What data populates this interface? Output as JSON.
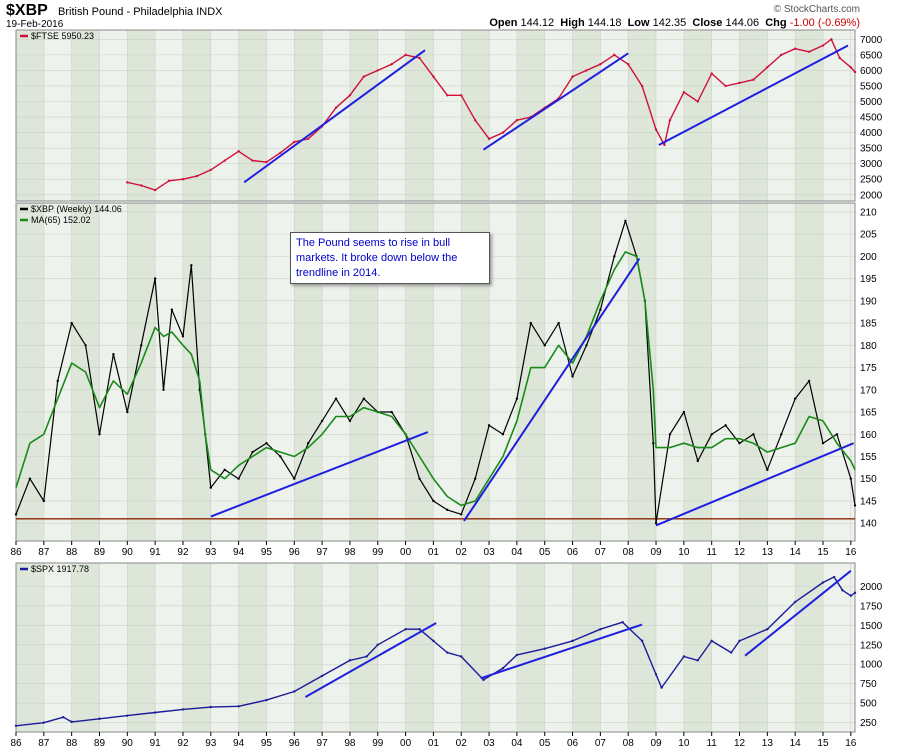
{
  "header": {
    "symbol": "$XBP",
    "name": "British Pound - Philadelphia",
    "exchange": "INDX",
    "date": "19-Feb-2016",
    "brand": "© StockCharts.com",
    "open_label": "Open",
    "open": "144.12",
    "high_label": "High",
    "high": "144.18",
    "low_label": "Low",
    "low": "142.35",
    "close_label": "Close",
    "close": "144.06",
    "chg_label": "Chg",
    "chg": "-1.00 (-0.69%)"
  },
  "annotation": "The Pound seems to rise in bull markets. It broke down below the trendline in 2014.",
  "chart_data": [
    {
      "type": "line",
      "legend": "$FTSE 5950.23",
      "color": "#d0103a",
      "ylim": [
        1800,
        7300
      ],
      "yticks": [
        2000,
        2500,
        3000,
        3500,
        4000,
        4500,
        5000,
        5500,
        6000,
        6500,
        7000
      ],
      "x": [
        1990.0,
        1990.5,
        1991.0,
        1991.5,
        1992.0,
        1992.5,
        1993.0,
        1993.5,
        1994.0,
        1994.5,
        1995.0,
        1995.5,
        1996.0,
        1996.5,
        1997.0,
        1997.5,
        1998.0,
        1998.5,
        1999.0,
        1999.5,
        2000.0,
        2000.5,
        2001.0,
        2001.5,
        2002.0,
        2002.5,
        2003.0,
        2003.5,
        2004.0,
        2004.5,
        2005.0,
        2005.5,
        2006.0,
        2006.5,
        2007.0,
        2007.5,
        2008.0,
        2008.5,
        2009.0,
        2009.3,
        2009.5,
        2010.0,
        2010.5,
        2011.0,
        2011.5,
        2012.0,
        2012.5,
        2013.0,
        2013.5,
        2014.0,
        2014.5,
        2015.0,
        2015.3,
        2015.6,
        2016.0,
        2016.15
      ],
      "values": [
        2400,
        2300,
        2150,
        2450,
        2500,
        2600,
        2800,
        3100,
        3400,
        3100,
        3050,
        3350,
        3700,
        3800,
        4200,
        4800,
        5200,
        5800,
        6000,
        6200,
        6500,
        6400,
        5800,
        5200,
        5200,
        4400,
        3800,
        4000,
        4400,
        4500,
        4800,
        5100,
        5800,
        6000,
        6200,
        6500,
        6200,
        5500,
        4100,
        3600,
        4400,
        5300,
        5000,
        5900,
        5500,
        5600,
        5700,
        6100,
        6500,
        6700,
        6600,
        6800,
        7000,
        6400,
        6100,
        5950
      ],
      "trendlines": [
        {
          "x": [
            1994.2,
            2000.7
          ],
          "values": [
            2400,
            6650
          ]
        },
        {
          "x": [
            2002.8,
            2008.0
          ],
          "values": [
            3450,
            6550
          ]
        },
        {
          "x": [
            2009.1,
            2015.9
          ],
          "values": [
            3600,
            6800
          ]
        }
      ]
    },
    {
      "type": "line",
      "legend": "$XBP (Weekly) 144.06",
      "ma_legend": "MA(65) 152.02",
      "color": "#000000",
      "ma_color": "#1a8a1a",
      "ylim": [
        136,
        212
      ],
      "yticks": [
        140,
        145,
        150,
        155,
        160,
        165,
        170,
        175,
        180,
        185,
        190,
        195,
        200,
        205,
        210
      ],
      "x": [
        1986.0,
        1986.5,
        1987.0,
        1987.5,
        1988.0,
        1988.5,
        1989.0,
        1989.5,
        1990.0,
        1990.5,
        1991.0,
        1991.3,
        1991.6,
        1992.0,
        1992.3,
        1992.6,
        1992.8,
        1993.0,
        1993.5,
        1994.0,
        1994.5,
        1995.0,
        1995.5,
        1996.0,
        1996.5,
        1997.0,
        1997.5,
        1998.0,
        1998.5,
        1999.0,
        1999.5,
        2000.0,
        2000.5,
        2001.0,
        2001.5,
        2002.0,
        2002.5,
        2003.0,
        2003.5,
        2004.0,
        2004.5,
        2005.0,
        2005.5,
        2006.0,
        2006.5,
        2007.0,
        2007.5,
        2007.9,
        2008.3,
        2008.6,
        2008.9,
        2009.0,
        2009.5,
        2010.0,
        2010.5,
        2011.0,
        2011.5,
        2012.0,
        2012.5,
        2013.0,
        2013.5,
        2014.0,
        2014.5,
        2015.0,
        2015.5,
        2016.0,
        2016.15
      ],
      "values": [
        142,
        150,
        145,
        172,
        185,
        180,
        160,
        178,
        165,
        180,
        195,
        170,
        188,
        182,
        198,
        170,
        160,
        148,
        152,
        150,
        156,
        158,
        155,
        150,
        158,
        163,
        168,
        163,
        168,
        165,
        165,
        160,
        150,
        145,
        143,
        142,
        150,
        162,
        160,
        168,
        185,
        180,
        185,
        173,
        180,
        188,
        200,
        208,
        200,
        190,
        158,
        140,
        160,
        165,
        154,
        160,
        162,
        158,
        160,
        152,
        160,
        168,
        172,
        158,
        160,
        150,
        144
      ],
      "ma": [
        148,
        158,
        160,
        168,
        176,
        174,
        166,
        172,
        169,
        176,
        184,
        182,
        183,
        180,
        178,
        172,
        160,
        152,
        150,
        153,
        155,
        157,
        156,
        155,
        157,
        160,
        164,
        164,
        166,
        165,
        164,
        160,
        155,
        150,
        146,
        144,
        145,
        150,
        155,
        163,
        175,
        175,
        180,
        176,
        182,
        190,
        197,
        201,
        200,
        190,
        170,
        157,
        157,
        158,
        157,
        157,
        159,
        159,
        158,
        156,
        157,
        158,
        164,
        163,
        158,
        154,
        152
      ],
      "support": 141,
      "trendlines": [
        {
          "x": [
            1993.0,
            2000.8
          ],
          "values": [
            141.5,
            160.5
          ]
        },
        {
          "x": [
            2002.1,
            2008.4
          ],
          "values": [
            140.5,
            199.5
          ]
        },
        {
          "x": [
            2009.0,
            2016.1
          ],
          "values": [
            139.5,
            158.0
          ]
        }
      ]
    },
    {
      "type": "line",
      "legend": "$SPX 1917.78",
      "color": "#1a1a9a",
      "ylim": [
        130,
        2300
      ],
      "yticks": [
        250,
        500,
        750,
        1000,
        1250,
        1500,
        1750,
        2000
      ],
      "x": [
        1986.0,
        1987.0,
        1987.7,
        1988.0,
        1989.0,
        1990.0,
        1991.0,
        1992.0,
        1993.0,
        1994.0,
        1995.0,
        1996.0,
        1997.0,
        1998.0,
        1998.6,
        1999.0,
        2000.0,
        2000.5,
        2001.0,
        2001.5,
        2002.0,
        2002.8,
        2003.5,
        2004.0,
        2005.0,
        2006.0,
        2007.0,
        2007.8,
        2008.5,
        2009.0,
        2009.2,
        2010.0,
        2010.5,
        2011.0,
        2011.7,
        2012.0,
        2013.0,
        2014.0,
        2015.0,
        2015.4,
        2015.7,
        2016.0,
        2016.15
      ],
      "values": [
        210,
        250,
        320,
        260,
        300,
        340,
        380,
        420,
        450,
        460,
        540,
        650,
        850,
        1050,
        1100,
        1250,
        1450,
        1450,
        1300,
        1150,
        1100,
        800,
        950,
        1120,
        1200,
        1300,
        1450,
        1540,
        1300,
        870,
        700,
        1100,
        1050,
        1300,
        1150,
        1300,
        1450,
        1800,
        2050,
        2120,
        1950,
        1880,
        1918
      ],
      "trendlines": [
        {
          "x": [
            1996.4,
            2001.1
          ],
          "values": [
            580,
            1530
          ]
        },
        {
          "x": [
            2002.7,
            2008.5
          ],
          "values": [
            820,
            1510
          ]
        },
        {
          "x": [
            2012.2,
            2016.0
          ],
          "values": [
            1110,
            2200
          ]
        }
      ]
    }
  ],
  "x_axis": {
    "tick_labels": [
      "86",
      "87",
      "88",
      "89",
      "90",
      "91",
      "92",
      "93",
      "94",
      "95",
      "96",
      "97",
      "98",
      "99",
      "00",
      "01",
      "02",
      "03",
      "04",
      "05",
      "06",
      "07",
      "08",
      "09",
      "10",
      "11",
      "12",
      "13",
      "14",
      "15",
      "16"
    ]
  }
}
